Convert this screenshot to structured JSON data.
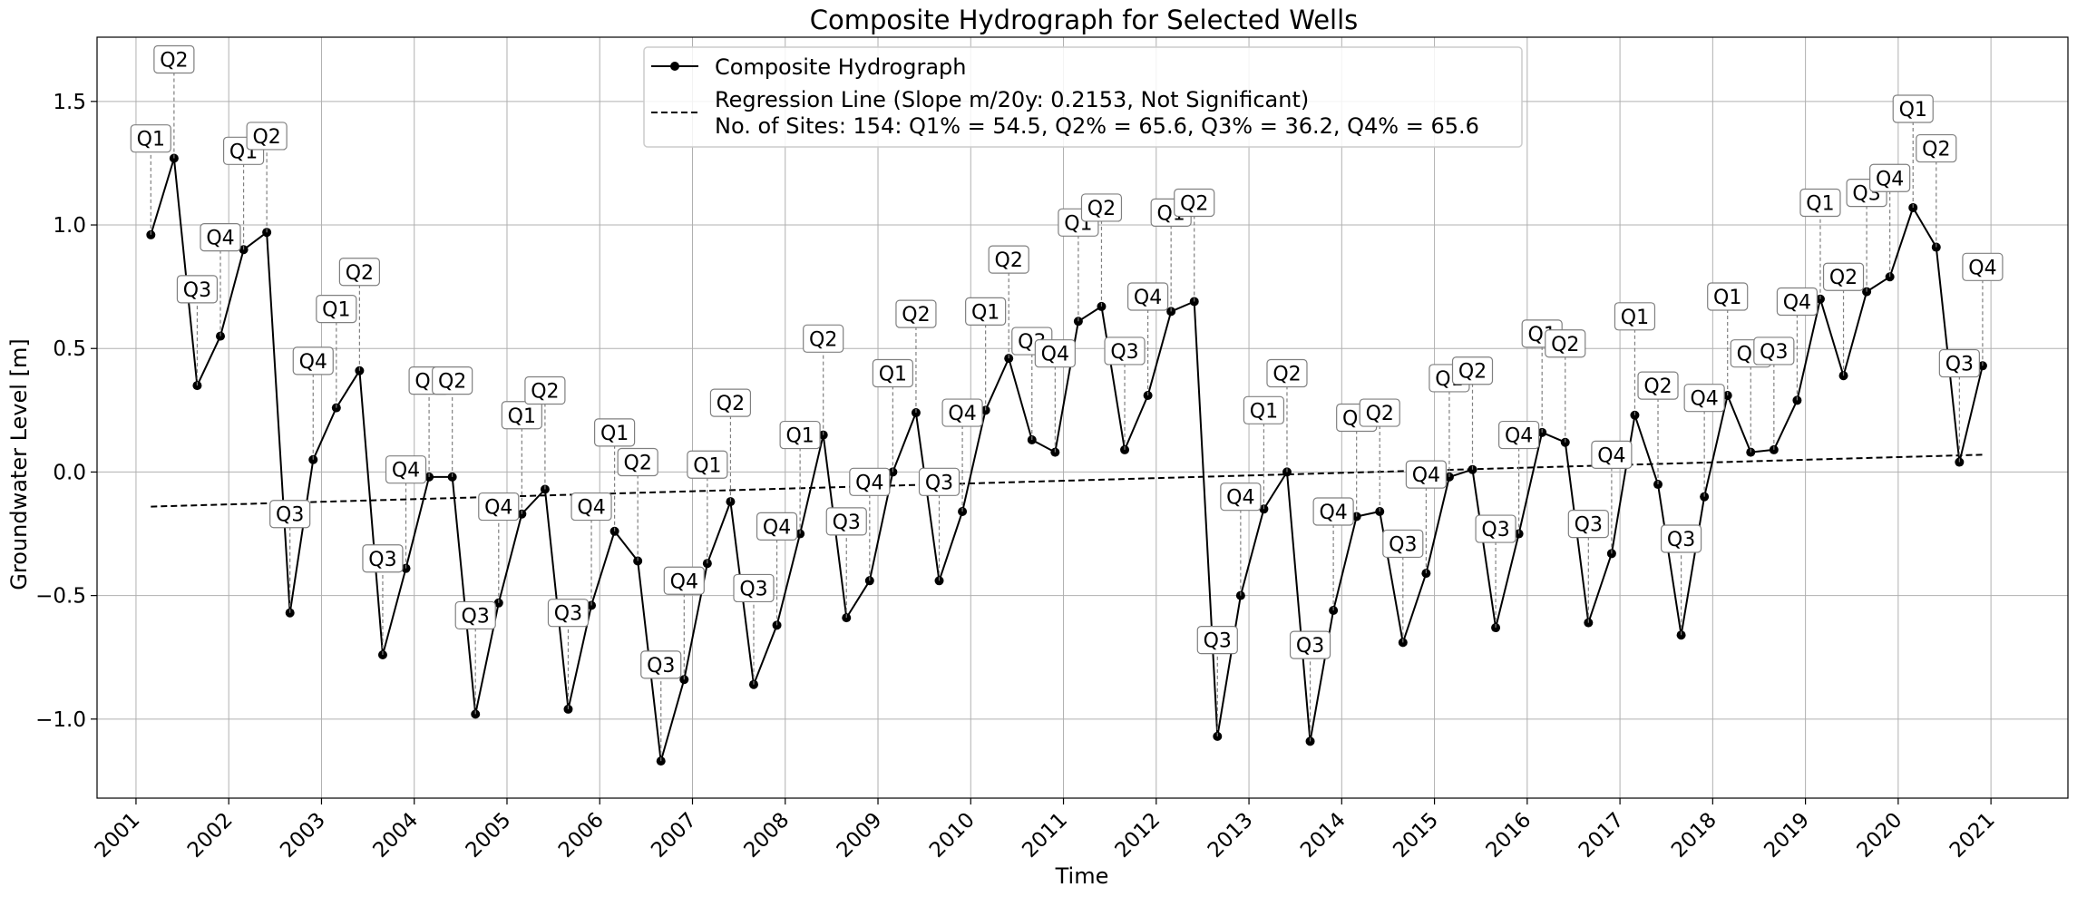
{
  "chart_data": {
    "type": "line",
    "title": "Composite Hydrograph for Selected Wells",
    "xlabel": "Time",
    "ylabel": "Groundwater Level [m]",
    "xlim": [
      2000.58,
      2021.83
    ],
    "ylim": [
      -1.32,
      1.76
    ],
    "x_ticks": [
      "2001",
      "2002",
      "2003",
      "2004",
      "2005",
      "2006",
      "2007",
      "2008",
      "2009",
      "2010",
      "2011",
      "2012",
      "2013",
      "2014",
      "2015",
      "2016",
      "2017",
      "2018",
      "2019",
      "2020",
      "2021"
    ],
    "y_ticks": [
      {
        "value": 1.5,
        "label": "1.5"
      },
      {
        "value": 1.0,
        "label": "1.0"
      },
      {
        "value": 0.5,
        "label": "0.5"
      },
      {
        "value": 0.0,
        "label": "0.0"
      },
      {
        "value": -0.5,
        "label": "−0.5"
      },
      {
        "value": -1.0,
        "label": "−1.0"
      }
    ],
    "grid": true,
    "legend_position": "top-center",
    "series": [
      {
        "name": "Composite Hydrograph",
        "style": "solid line with circle markers",
        "color": "#000000",
        "x": [
          2001.16,
          2001.41,
          2001.66,
          2001.91,
          2002.16,
          2002.41,
          2002.66,
          2002.91,
          2003.16,
          2003.41,
          2003.66,
          2003.91,
          2004.16,
          2004.41,
          2004.66,
          2004.91,
          2005.16,
          2005.41,
          2005.66,
          2005.91,
          2006.16,
          2006.41,
          2006.66,
          2006.91,
          2007.16,
          2007.41,
          2007.66,
          2007.91,
          2008.16,
          2008.41,
          2008.66,
          2008.91,
          2009.16,
          2009.41,
          2009.66,
          2009.91,
          2010.16,
          2010.41,
          2010.66,
          2010.91,
          2011.16,
          2011.41,
          2011.66,
          2011.91,
          2012.16,
          2012.41,
          2012.66,
          2012.91,
          2013.16,
          2013.41,
          2013.66,
          2013.91,
          2014.16,
          2014.41,
          2014.66,
          2014.91,
          2015.16,
          2015.41,
          2015.66,
          2015.91,
          2016.16,
          2016.41,
          2016.66,
          2016.91,
          2017.16,
          2017.41,
          2017.66,
          2017.91,
          2018.16,
          2018.41,
          2018.66,
          2018.91,
          2019.16,
          2019.41,
          2019.66,
          2019.91,
          2020.16,
          2020.41,
          2020.66,
          2020.91
        ],
        "y": [
          0.96,
          1.27,
          0.35,
          0.55,
          0.9,
          0.97,
          -0.57,
          0.05,
          0.26,
          0.41,
          -0.74,
          -0.39,
          -0.02,
          -0.02,
          -0.98,
          -0.53,
          -0.17,
          -0.07,
          -0.96,
          -0.54,
          -0.24,
          -0.36,
          -1.17,
          -0.84,
          -0.37,
          -0.12,
          -0.86,
          -0.62,
          -0.25,
          0.15,
          -0.59,
          -0.44,
          0.0,
          0.24,
          -0.44,
          -0.16,
          0.25,
          0.46,
          0.13,
          0.08,
          0.61,
          0.67,
          0.09,
          0.31,
          0.65,
          0.69,
          -1.07,
          -0.5,
          -0.15,
          0.0,
          -1.09,
          -0.56,
          -0.18,
          -0.16,
          -0.69,
          -0.41,
          -0.02,
          0.01,
          -0.63,
          -0.25,
          0.16,
          0.12,
          -0.61,
          -0.33,
          0.23,
          -0.05,
          -0.66,
          -0.1,
          0.31,
          0.08,
          0.09,
          0.29,
          0.7,
          0.39,
          0.73,
          0.79,
          1.07,
          0.91,
          0.04,
          0.43
        ],
        "point_labels": [
          "Q1",
          "Q2",
          "Q3",
          "Q4",
          "Q1",
          "Q2",
          "Q3",
          "Q4",
          "Q1",
          "Q2",
          "Q3",
          "Q4",
          "Q1",
          "Q2",
          "Q3",
          "Q4",
          "Q1",
          "Q2",
          "Q3",
          "Q4",
          "Q1",
          "Q2",
          "Q3",
          "Q4",
          "Q1",
          "Q2",
          "Q3",
          "Q4",
          "Q1",
          "Q2",
          "Q3",
          "Q4",
          "Q1",
          "Q2",
          "Q3",
          "Q4",
          "Q1",
          "Q2",
          "Q3",
          "Q4",
          "Q1",
          "Q2",
          "Q3",
          "Q4",
          "Q1",
          "Q2",
          "Q3",
          "Q4",
          "Q1",
          "Q2",
          "Q3",
          "Q4",
          "Q1",
          "Q2",
          "Q3",
          "Q4",
          "Q1",
          "Q2",
          "Q3",
          "Q4",
          "Q1",
          "Q2",
          "Q3",
          "Q4",
          "Q1",
          "Q2",
          "Q3",
          "Q4",
          "Q1",
          "Q2",
          "Q3",
          "Q4",
          "Q1",
          "Q2",
          "Q3",
          "Q4",
          "Q1",
          "Q2",
          "Q3",
          "Q4"
        ],
        "point_label_y": [
          1.35,
          1.67,
          0.74,
          0.95,
          1.3,
          1.36,
          -0.17,
          0.45,
          0.66,
          0.81,
          -0.35,
          0.01,
          0.37,
          0.37,
          -0.58,
          -0.14,
          0.23,
          0.33,
          -0.57,
          -0.14,
          0.16,
          0.04,
          -0.78,
          -0.44,
          0.03,
          0.28,
          -0.47,
          -0.22,
          0.15,
          0.54,
          -0.2,
          -0.04,
          0.4,
          0.64,
          -0.04,
          0.24,
          0.65,
          0.86,
          0.53,
          0.48,
          1.01,
          1.07,
          0.49,
          0.71,
          1.05,
          1.09,
          -0.68,
          -0.1,
          0.25,
          0.4,
          -0.7,
          -0.16,
          0.22,
          0.24,
          -0.29,
          -0.01,
          0.38,
          0.41,
          -0.23,
          0.15,
          0.56,
          0.52,
          -0.21,
          0.07,
          0.63,
          0.35,
          -0.27,
          0.3,
          0.71,
          0.48,
          0.49,
          0.69,
          1.09,
          0.79,
          1.13,
          1.19,
          1.47,
          1.31,
          0.44,
          0.83
        ]
      },
      {
        "name": "Regression Line (Slope m/20y: 0.2153, Not Significant)",
        "style": "dashed",
        "color": "#000000",
        "x": [
          2001.16,
          2020.91
        ],
        "y": [
          -0.14,
          0.07
        ]
      }
    ],
    "legend_entries": [
      "Composite Hydrograph",
      "Regression Line (Slope m/20y: 0.2153, Not Significant)",
      "No. of Sites: 154: Q1% = 54.5, Q2% = 65.6, Q3% = 36.2, Q4% = 65.6"
    ]
  }
}
